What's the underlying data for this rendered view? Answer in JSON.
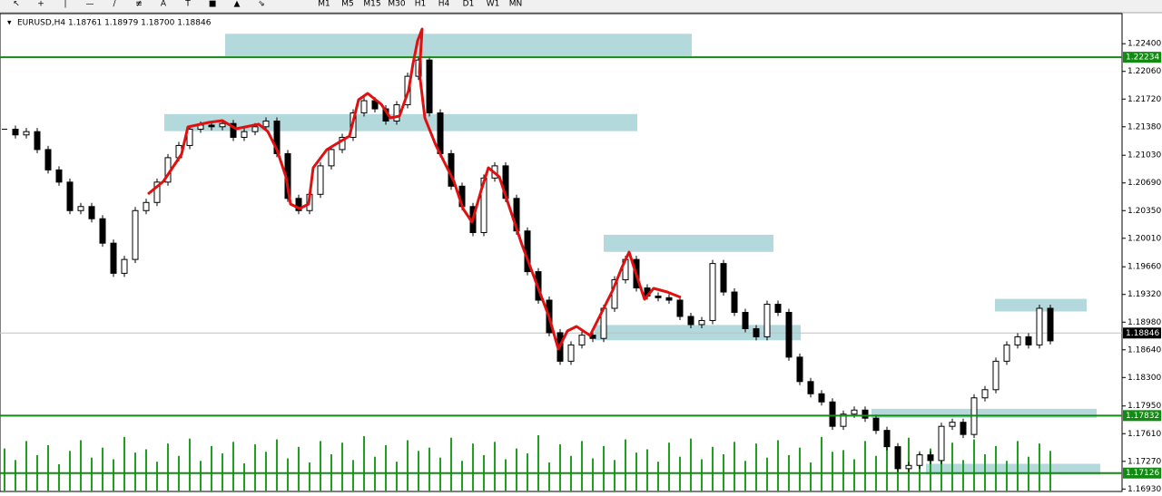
{
  "toolbar": {
    "periods": [
      "M1",
      "M5",
      "M15",
      "M30",
      "H1",
      "H4",
      "D1",
      "W1",
      "MN"
    ]
  },
  "chart_data": {
    "type": "candlestick",
    "title": "EURUSD,H4",
    "ohlc_info": "1.18761 1.18979 1.18700 1.18846",
    "values": [
      1.2135,
      1.2128,
      1.2132,
      1.211,
      1.2085,
      1.207,
      1.2035,
      1.204,
      1.2025,
      1.1995,
      1.1958,
      1.1975,
      1.2035,
      1.2045,
      1.207,
      1.21,
      1.2115,
      1.2135,
      1.214,
      1.2138,
      1.2142,
      1.2125,
      1.2132,
      1.2138,
      1.2145,
      1.2105,
      1.205,
      1.2035,
      1.2055,
      1.209,
      1.211,
      1.2125,
      1.2155,
      1.217,
      1.216,
      1.2145,
      1.2165,
      1.22,
      1.222,
      1.2155,
      1.2105,
      1.2065,
      1.204,
      1.2008,
      1.2075,
      1.209,
      1.205,
      1.201,
      1.196,
      1.1925,
      1.1885,
      1.185,
      1.187,
      1.1882,
      1.1878,
      1.1915,
      1.195,
      1.1975,
      1.194,
      1.193,
      1.1928,
      1.1925,
      1.1905,
      1.1895,
      1.19,
      1.197,
      1.1935,
      1.191,
      1.189,
      1.188,
      1.192,
      1.191,
      1.1855,
      1.1825,
      1.181,
      1.18,
      1.177,
      1.1785,
      1.179,
      1.178,
      1.1765,
      1.1745,
      1.1718,
      1.1722,
      1.1735,
      1.1728,
      1.177,
      1.1775,
      1.176,
      1.1805,
      1.1815,
      1.185,
      1.187,
      1.188,
      1.187,
      1.1915,
      1.1875
    ],
    "volumes": [
      5200,
      3800,
      6100,
      4400,
      5600,
      3300,
      4900,
      6200,
      4100,
      5300,
      3900,
      6600,
      4700,
      5100,
      3600,
      5800,
      4300,
      6400,
      3700,
      5500,
      4600,
      6000,
      3400,
      5700,
      4800,
      6300,
      4000,
      5400,
      3500,
      6100,
      4500,
      5900,
      3800,
      6700,
      4200,
      5600,
      3600,
      6200,
      4900,
      5300,
      4100,
      6500,
      3700,
      5800,
      4400,
      6000,
      3900,
      5200,
      4600,
      6800,
      3500,
      5700,
      4300,
      6100,
      4000,
      5500,
      3800,
      6300,
      4700,
      5100,
      3600,
      5900,
      4200,
      6400,
      3900,
      5400,
      4500,
      6000,
      3700,
      5800,
      4100,
      6200,
      4400,
      5300,
      3500,
      6600,
      4800,
      5000,
      3900,
      6100,
      4300,
      5700,
      3600,
      6500,
      4600,
      5200,
      4000,
      5900,
      3800,
      6300,
      4500,
      5500,
      3700,
      6100,
      4200,
      5800,
      4900
    ],
    "ylim": [
      1.169,
      1.2277
    ],
    "yticks": [
      {
        "value": 1.1693,
        "label": "1.16930"
      },
      {
        "value": 1.1727,
        "label": "1.17270"
      },
      {
        "value": 1.1761,
        "label": "1.17610"
      },
      {
        "value": 1.1795,
        "label": "1.17950"
      },
      {
        "value": 1.183,
        "label": "1.18300"
      },
      {
        "value": 1.1864,
        "label": "1.18640"
      },
      {
        "value": 1.1898,
        "label": "1.18980"
      },
      {
        "value": 1.1932,
        "label": "1.19320"
      },
      {
        "value": 1.1966,
        "label": "1.19660"
      },
      {
        "value": 1.2001,
        "label": "1.20010"
      },
      {
        "value": 1.2035,
        "label": "1.20350"
      },
      {
        "value": 1.2069,
        "label": "1.20690"
      },
      {
        "value": 1.2103,
        "label": "1.21030"
      },
      {
        "value": 1.2138,
        "label": "1.21380"
      },
      {
        "value": 1.2172,
        "label": "1.21720"
      },
      {
        "value": 1.2206,
        "label": "1.22060"
      },
      {
        "value": 1.224,
        "label": "1.22400"
      }
    ],
    "levels": [
      {
        "value": 1.22234,
        "label": "1.22234"
      },
      {
        "value": 1.17832,
        "label": "1.17832"
      },
      {
        "value": 1.17126,
        "label": "1.17126"
      }
    ],
    "current_price": {
      "value": 1.18846,
      "label": "1.18846"
    },
    "zones": [
      [
        1.22522,
        1.22245
      ],
      [
        1.21536,
        1.21326
      ],
      [
        1.20053,
        1.19843
      ],
      [
        1.18945,
        1.18757
      ],
      [
        1.19266,
        1.19111
      ],
      [
        1.17915,
        1.17805
      ],
      [
        1.1724,
        1.17107
      ]
    ]
  }
}
